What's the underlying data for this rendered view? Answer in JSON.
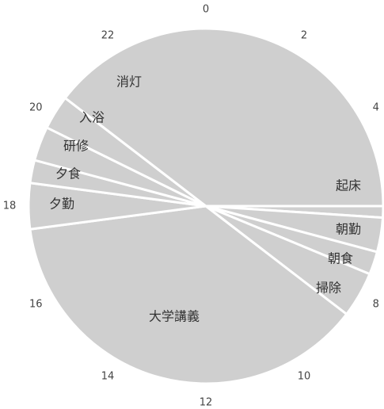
{
  "chart_data": {
    "type": "pie",
    "title": "",
    "clock_hours": 24,
    "hour_ticks": [
      "0",
      "2",
      "4",
      "8",
      "10",
      "12",
      "14",
      "16",
      "18",
      "20",
      "22"
    ],
    "slices": [
      {
        "label": "起床",
        "start": 6.0,
        "end": 6.25
      },
      {
        "label": "朝勤",
        "start": 6.25,
        "end": 7.0
      },
      {
        "label": "朝食",
        "start": 7.0,
        "end": 7.5
      },
      {
        "label": "掃除",
        "start": 7.5,
        "end": 8.5
      },
      {
        "label": "大学講義",
        "start": 8.5,
        "end": 17.5
      },
      {
        "label": "夕勤",
        "start": 17.5,
        "end": 18.5
      },
      {
        "label": "夕食",
        "start": 18.5,
        "end": 19.0
      },
      {
        "label": "研修",
        "start": 19.0,
        "end": 19.75
      },
      {
        "label": "入浴",
        "start": 19.75,
        "end": 20.5
      },
      {
        "label": "消灯",
        "start": 20.5,
        "end": 30.0
      }
    ],
    "colors": {
      "slice_fill": "#cfcfcf",
      "separator": "#ffffff",
      "text": "#333333"
    }
  }
}
